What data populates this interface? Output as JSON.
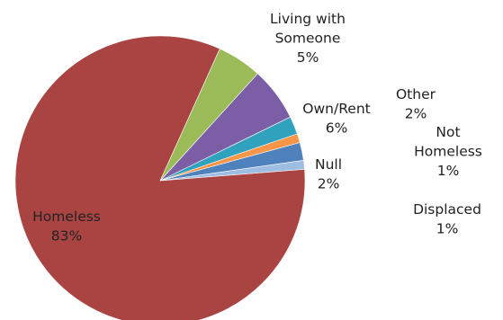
{
  "chart_data": {
    "type": "pie",
    "title": "",
    "slices": [
      {
        "label_lines": [
          "Displaced",
          "1%"
        ],
        "value": 1,
        "color": "#9dbde3"
      },
      {
        "label_lines": [
          "Null",
          "2%"
        ],
        "value": 2,
        "color": "#4f81bd"
      },
      {
        "label_lines": [
          "Not",
          "Homeless",
          "1%"
        ],
        "value": 1,
        "color": "#f79646"
      },
      {
        "label_lines": [
          "Other",
          "2%"
        ],
        "value": 2,
        "color": "#31a2bd"
      },
      {
        "label_lines": [
          "Own/Rent",
          "6%"
        ],
        "value": 6,
        "color": "#7b5ea5"
      },
      {
        "label_lines": [
          "Living with",
          "Someone",
          "5%"
        ],
        "value": 5,
        "color": "#9bbb59"
      },
      {
        "label_lines": [
          "Homeless",
          "83%"
        ],
        "value": 83,
        "color": "#a94442"
      }
    ]
  }
}
